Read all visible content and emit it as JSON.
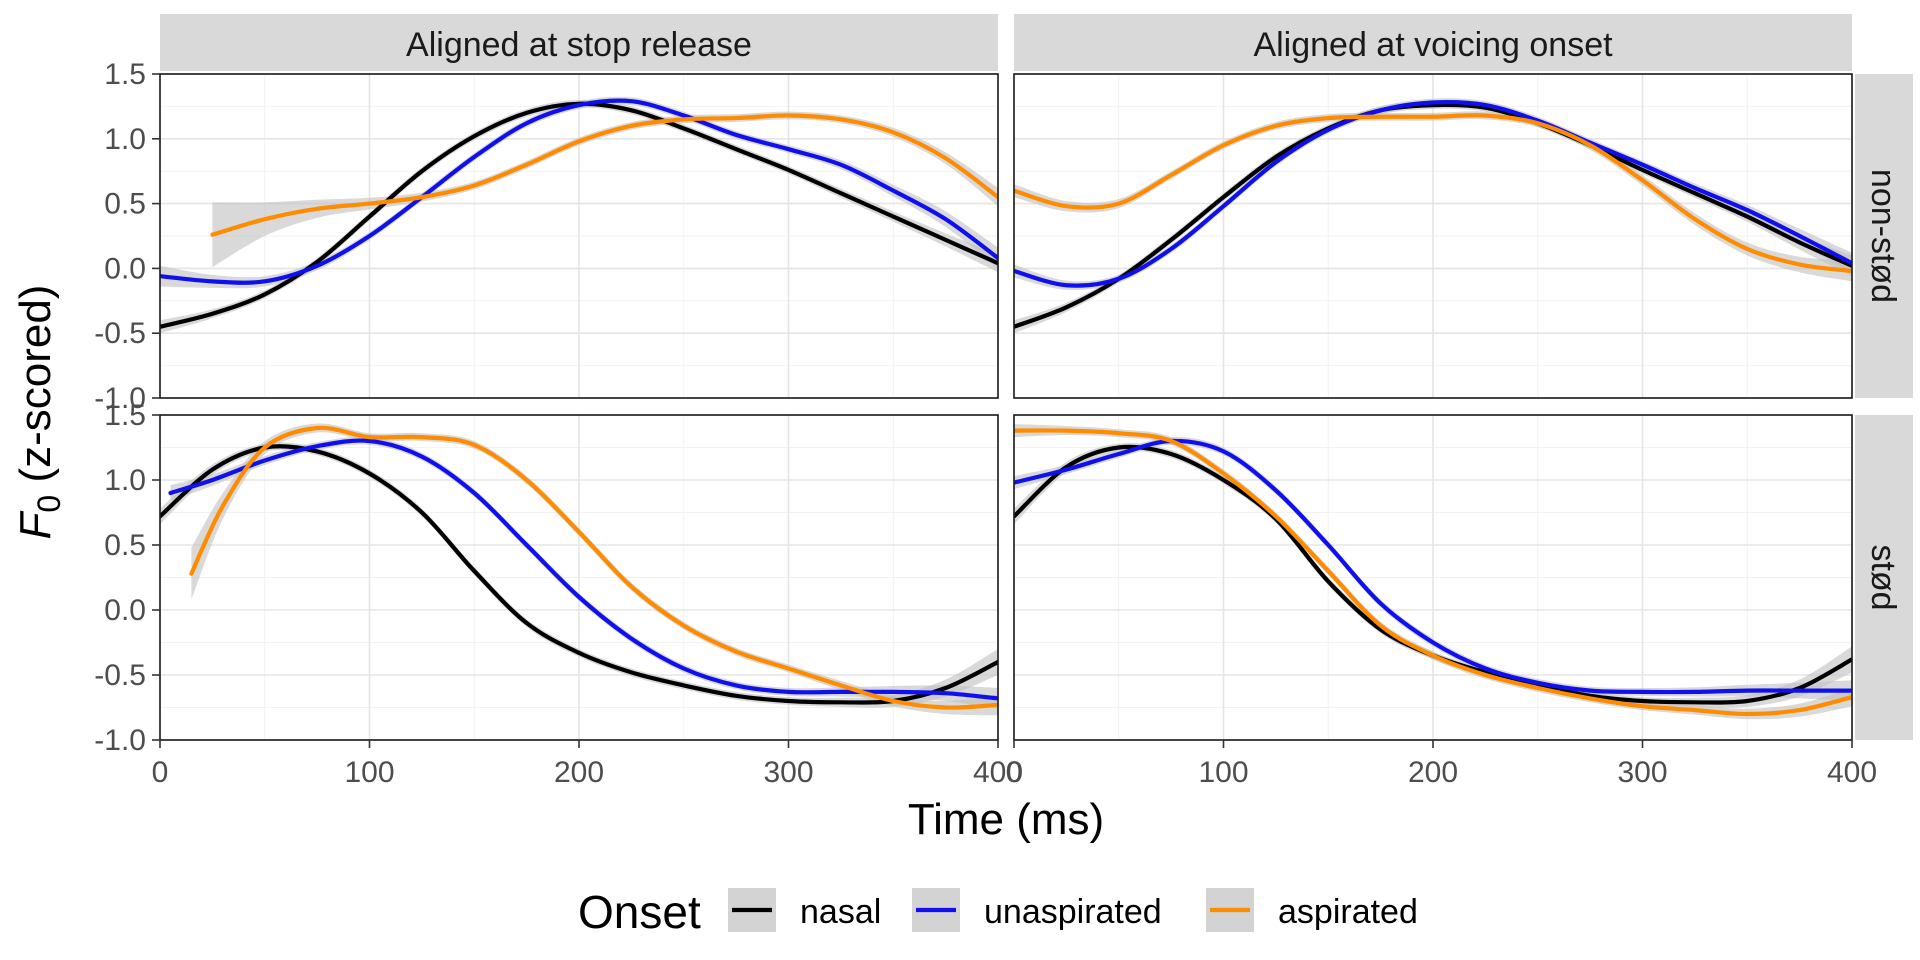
{
  "chart_data": {
    "type": "line",
    "xlabel": "Time (ms)",
    "ylabel_main": "F",
    "ylabel_sub": "0",
    "ylabel_rest": " (z-scored)",
    "xlim": [
      0,
      400
    ],
    "ylim": [
      -1.0,
      1.5
    ],
    "x_ticks": [
      0,
      100,
      200,
      300,
      400
    ],
    "x_tick_labels": [
      "0",
      "100",
      "200",
      "300",
      "400"
    ],
    "y_ticks": [
      -1.0,
      -0.5,
      0.0,
      0.5,
      1.0,
      1.5
    ],
    "y_tick_labels": [
      "-1.0",
      "-0.5",
      "0.0",
      "0.5",
      "1.0",
      "1.5"
    ],
    "grid": true,
    "legend": {
      "title": "Onset",
      "position": "bottom",
      "entries": [
        {
          "name": "nasal",
          "color": "#000000"
        },
        {
          "name": "unaspirated",
          "color": "#1010ee"
        },
        {
          "name": "aspirated",
          "color": "#ff8c00"
        }
      ]
    },
    "column_facets": [
      "Aligned at stop release",
      "Aligned at voicing onset"
    ],
    "row_facets": [
      "non-stød",
      "stød"
    ],
    "panels": [
      {
        "column": "Aligned at stop release",
        "row": "non-stød",
        "series": [
          {
            "name": "nasal",
            "x": [
              0,
              25,
              50,
              75,
              100,
              125,
              150,
              175,
              200,
              225,
              250,
              275,
              300,
              325,
              350,
              375,
              400
            ],
            "y": [
              -0.45,
              -0.35,
              -0.2,
              0.05,
              0.4,
              0.75,
              1.02,
              1.2,
              1.27,
              1.22,
              1.08,
              0.92,
              0.76,
              0.58,
              0.4,
              0.22,
              0.04
            ],
            "se": [
              0.05,
              0.035,
              0.03,
              0.03,
              0.03,
              0.03,
              0.03,
              0.03,
              0.03,
              0.03,
              0.03,
              0.03,
              0.03,
              0.035,
              0.04,
              0.05,
              0.07
            ]
          },
          {
            "name": "unaspirated",
            "x": [
              0,
              25,
              50,
              75,
              100,
              125,
              150,
              175,
              200,
              225,
              250,
              275,
              300,
              325,
              350,
              375,
              400
            ],
            "y": [
              -0.06,
              -0.1,
              -0.1,
              0.02,
              0.25,
              0.55,
              0.86,
              1.12,
              1.26,
              1.29,
              1.18,
              1.03,
              0.92,
              0.8,
              0.6,
              0.38,
              0.08
            ],
            "se": [
              0.08,
              0.05,
              0.04,
              0.035,
              0.03,
              0.03,
              0.03,
              0.03,
              0.03,
              0.03,
              0.03,
              0.03,
              0.03,
              0.035,
              0.045,
              0.06,
              0.08
            ]
          },
          {
            "name": "aspirated",
            "x": [
              25,
              50,
              75,
              100,
              125,
              150,
              175,
              200,
              225,
              250,
              275,
              300,
              325,
              350,
              375,
              400
            ],
            "y": [
              0.26,
              0.38,
              0.46,
              0.5,
              0.55,
              0.64,
              0.8,
              0.98,
              1.1,
              1.15,
              1.16,
              1.18,
              1.15,
              1.05,
              0.85,
              0.55
            ],
            "se": [
              0.25,
              0.13,
              0.07,
              0.045,
              0.035,
              0.03,
              0.03,
              0.03,
              0.03,
              0.03,
              0.03,
              0.03,
              0.03,
              0.035,
              0.045,
              0.07
            ]
          }
        ]
      },
      {
        "column": "Aligned at voicing onset",
        "row": "non-stød",
        "series": [
          {
            "name": "nasal",
            "x": [
              0,
              25,
              50,
              75,
              100,
              125,
              150,
              175,
              200,
              225,
              250,
              275,
              300,
              325,
              350,
              375,
              400
            ],
            "y": [
              -0.45,
              -0.3,
              -0.08,
              0.22,
              0.55,
              0.86,
              1.08,
              1.22,
              1.26,
              1.24,
              1.12,
              0.95,
              0.76,
              0.58,
              0.4,
              0.2,
              0.02
            ],
            "se": [
              0.05,
              0.035,
              0.03,
              0.03,
              0.03,
              0.03,
              0.03,
              0.03,
              0.03,
              0.03,
              0.03,
              0.03,
              0.03,
              0.035,
              0.04,
              0.055,
              0.08
            ]
          },
          {
            "name": "unaspirated",
            "x": [
              0,
              25,
              50,
              75,
              100,
              125,
              150,
              175,
              200,
              225,
              250,
              275,
              300,
              325,
              350,
              375,
              400
            ],
            "y": [
              -0.02,
              -0.13,
              -0.08,
              0.15,
              0.48,
              0.82,
              1.07,
              1.22,
              1.28,
              1.26,
              1.14,
              0.97,
              0.8,
              0.62,
              0.45,
              0.25,
              0.04
            ],
            "se": [
              0.05,
              0.035,
              0.03,
              0.03,
              0.03,
              0.03,
              0.03,
              0.03,
              0.03,
              0.03,
              0.03,
              0.03,
              0.03,
              0.035,
              0.04,
              0.055,
              0.08
            ]
          },
          {
            "name": "aspirated",
            "x": [
              0,
              25,
              50,
              75,
              100,
              125,
              150,
              175,
              200,
              225,
              250,
              275,
              300,
              325,
              350,
              375,
              400
            ],
            "y": [
              0.6,
              0.48,
              0.5,
              0.72,
              0.95,
              1.1,
              1.16,
              1.17,
              1.17,
              1.18,
              1.12,
              0.95,
              0.68,
              0.38,
              0.15,
              0.03,
              -0.02
            ],
            "se": [
              0.05,
              0.04,
              0.035,
              0.03,
              0.03,
              0.03,
              0.03,
              0.03,
              0.03,
              0.03,
              0.03,
              0.035,
              0.04,
              0.045,
              0.05,
              0.06,
              0.08
            ]
          }
        ]
      },
      {
        "column": "Aligned at stop release",
        "row": "stød",
        "series": [
          {
            "name": "nasal",
            "x": [
              0,
              25,
              50,
              75,
              100,
              125,
              150,
              175,
              200,
              225,
              250,
              275,
              300,
              325,
              350,
              375,
              400
            ],
            "y": [
              0.72,
              1.08,
              1.25,
              1.22,
              1.05,
              0.75,
              0.3,
              -0.1,
              -0.33,
              -0.48,
              -0.58,
              -0.66,
              -0.7,
              -0.71,
              -0.7,
              -0.6,
              -0.4
            ],
            "se": [
              0.06,
              0.04,
              0.03,
              0.03,
              0.03,
              0.03,
              0.03,
              0.03,
              0.03,
              0.03,
              0.03,
              0.03,
              0.03,
              0.035,
              0.045,
              0.065,
              0.1
            ]
          },
          {
            "name": "unaspirated",
            "x": [
              5,
              25,
              50,
              75,
              100,
              125,
              150,
              175,
              200,
              225,
              250,
              275,
              300,
              325,
              350,
              375,
              400
            ],
            "y": [
              0.9,
              1.0,
              1.15,
              1.26,
              1.3,
              1.18,
              0.9,
              0.5,
              0.1,
              -0.22,
              -0.45,
              -0.58,
              -0.63,
              -0.63,
              -0.63,
              -0.64,
              -0.68
            ],
            "se": [
              0.06,
              0.045,
              0.035,
              0.03,
              0.03,
              0.03,
              0.03,
              0.03,
              0.03,
              0.03,
              0.03,
              0.03,
              0.03,
              0.035,
              0.045,
              0.06,
              0.08
            ]
          },
          {
            "name": "aspirated",
            "x": [
              15,
              30,
              50,
              75,
              100,
              125,
              150,
              175,
              200,
              225,
              250,
              275,
              300,
              325,
              350,
              375,
              400
            ],
            "y": [
              0.28,
              0.8,
              1.25,
              1.4,
              1.33,
              1.33,
              1.27,
              1.0,
              0.6,
              0.18,
              -0.12,
              -0.32,
              -0.45,
              -0.58,
              -0.7,
              -0.75,
              -0.73
            ],
            "se": [
              0.2,
              0.1,
              0.05,
              0.035,
              0.03,
              0.03,
              0.03,
              0.03,
              0.03,
              0.03,
              0.03,
              0.03,
              0.03,
              0.035,
              0.04,
              0.05,
              0.08
            ]
          }
        ]
      },
      {
        "column": "Aligned at voicing onset",
        "row": "stød",
        "series": [
          {
            "name": "nasal",
            "x": [
              0,
              25,
              50,
              75,
              100,
              125,
              150,
              175,
              200,
              225,
              250,
              275,
              300,
              325,
              350,
              375,
              400
            ],
            "y": [
              0.72,
              1.1,
              1.25,
              1.2,
              1.0,
              0.7,
              0.22,
              -0.15,
              -0.35,
              -0.48,
              -0.58,
              -0.66,
              -0.7,
              -0.71,
              -0.7,
              -0.6,
              -0.38
            ],
            "se": [
              0.06,
              0.04,
              0.03,
              0.03,
              0.03,
              0.03,
              0.03,
              0.03,
              0.03,
              0.03,
              0.03,
              0.03,
              0.03,
              0.035,
              0.045,
              0.065,
              0.1
            ]
          },
          {
            "name": "unaspirated",
            "x": [
              0,
              25,
              50,
              75,
              100,
              125,
              150,
              175,
              200,
              225,
              250,
              275,
              300,
              325,
              350,
              375,
              400
            ],
            "y": [
              0.98,
              1.08,
              1.2,
              1.3,
              1.22,
              0.92,
              0.5,
              0.05,
              -0.25,
              -0.45,
              -0.56,
              -0.62,
              -0.63,
              -0.63,
              -0.62,
              -0.62,
              -0.62
            ],
            "se": [
              0.05,
              0.035,
              0.03,
              0.03,
              0.03,
              0.03,
              0.03,
              0.03,
              0.03,
              0.03,
              0.03,
              0.03,
              0.03,
              0.035,
              0.045,
              0.06,
              0.08
            ]
          },
          {
            "name": "aspirated",
            "x": [
              0,
              25,
              50,
              75,
              100,
              125,
              150,
              175,
              200,
              225,
              250,
              275,
              300,
              325,
              350,
              375,
              400
            ],
            "y": [
              1.38,
              1.38,
              1.36,
              1.3,
              1.05,
              0.72,
              0.3,
              -0.12,
              -0.35,
              -0.5,
              -0.6,
              -0.68,
              -0.74,
              -0.77,
              -0.8,
              -0.77,
              -0.67
            ],
            "se": [
              0.05,
              0.035,
              0.03,
              0.03,
              0.03,
              0.03,
              0.03,
              0.03,
              0.03,
              0.03,
              0.03,
              0.03,
              0.03,
              0.035,
              0.04,
              0.05,
              0.07
            ]
          }
        ]
      }
    ]
  }
}
